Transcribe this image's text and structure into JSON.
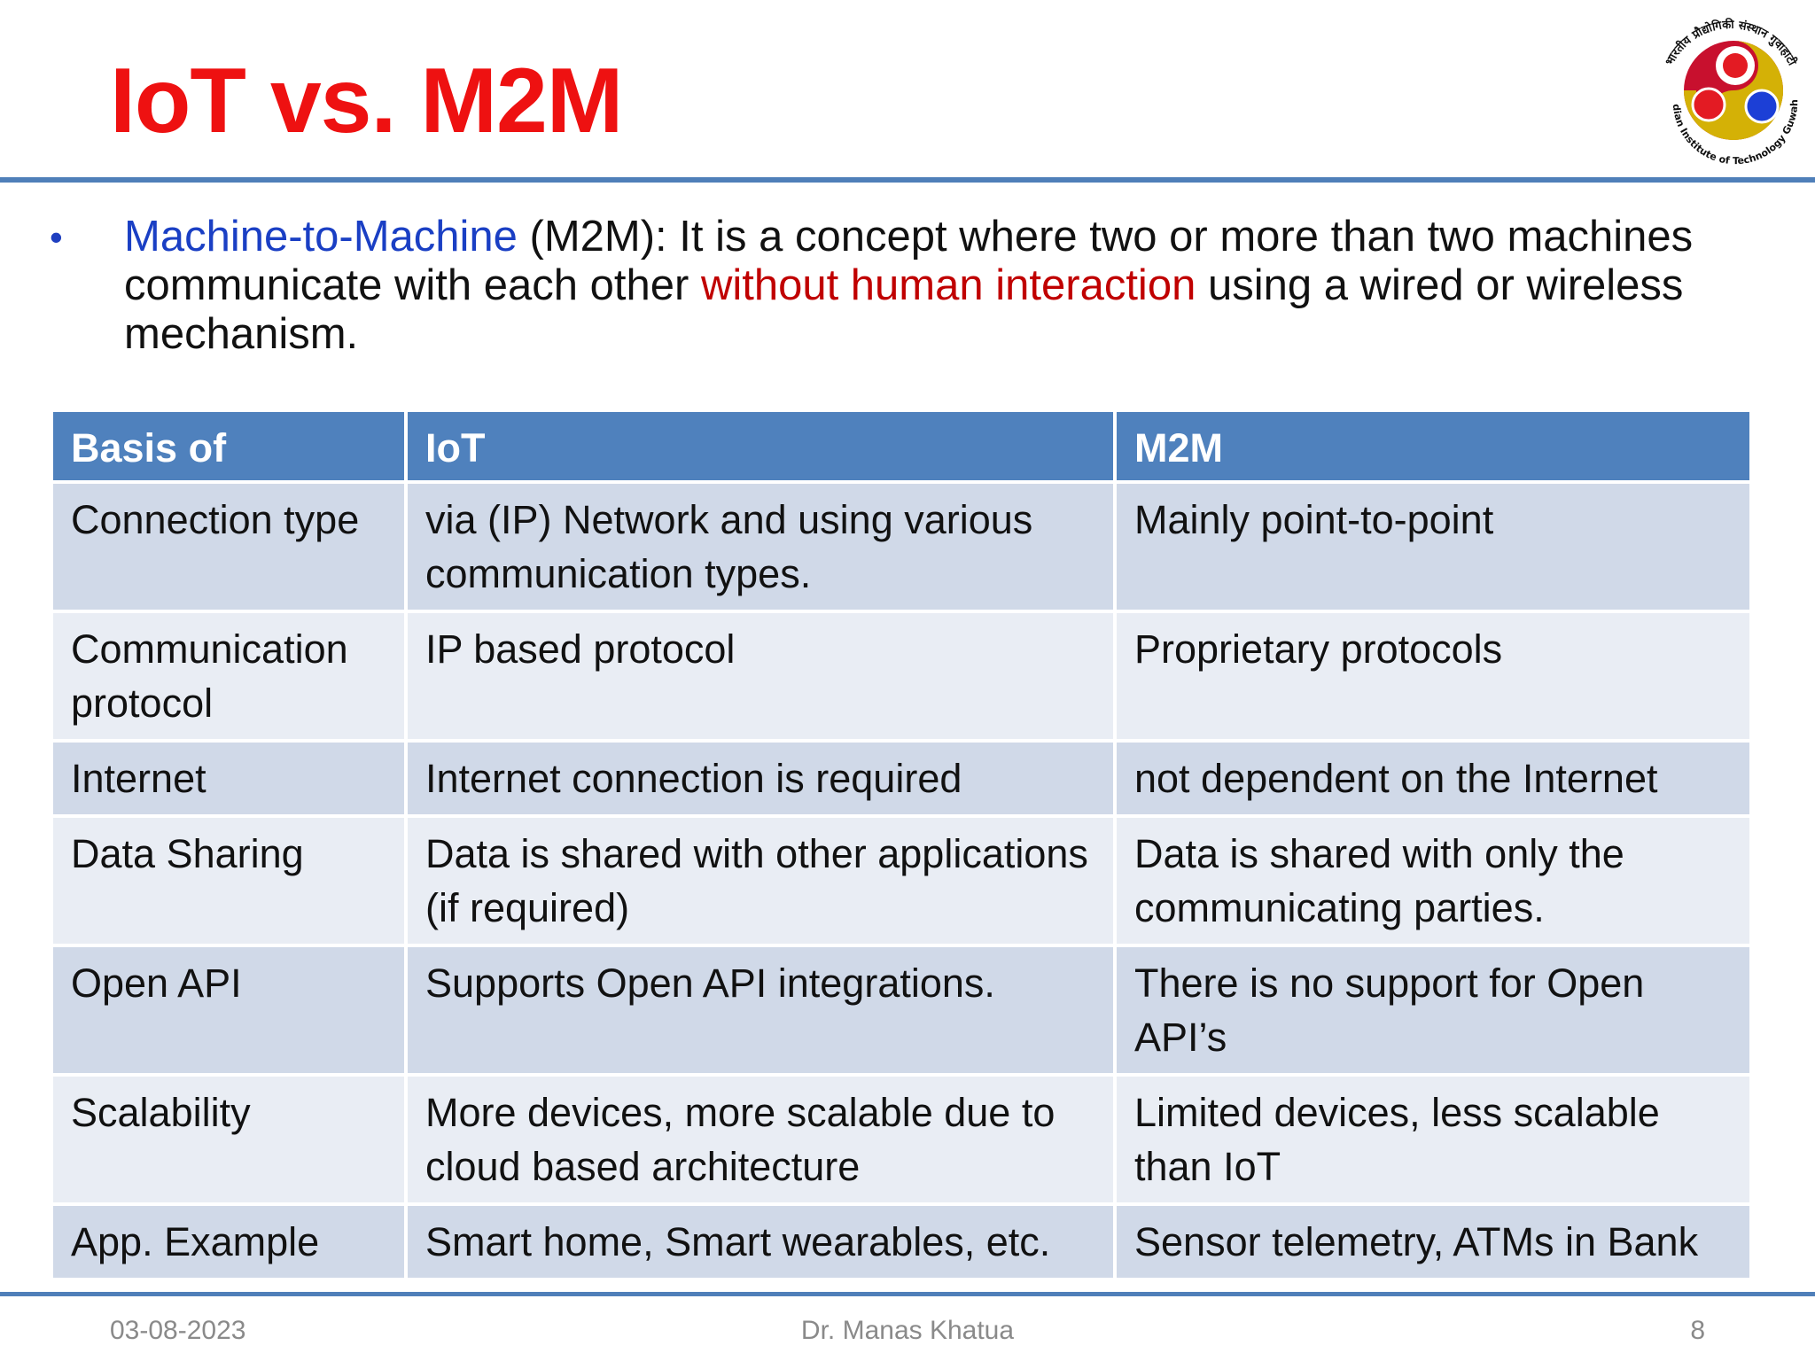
{
  "slide": {
    "title": "IoT vs. M2M",
    "logo": {
      "icon": "iit-guwahati-logo",
      "text_top": "भारतीय प्रौद्योगिकी संस्थान गुवाहाटी",
      "text_bottom": "Indian Institute of Technology Guwahati"
    }
  },
  "bullet": {
    "term": "Machine-to-Machine",
    "text_part1": " (M2M): It is a concept where two or more than two machines communicate with each other ",
    "highlight": "without human interaction",
    "text_part2": " using a wired or wireless mechanism."
  },
  "table": {
    "headers": [
      "Basis of",
      "IoT",
      "M2M"
    ],
    "rows": [
      [
        "Connection type",
        "via (IP) Network and using various communication types.",
        "Mainly point-to-point"
      ],
      [
        "Communication protocol",
        "IP based protocol",
        "Proprietary protocols"
      ],
      [
        "Internet",
        "Internet connection is required",
        "not dependent on the Internet"
      ],
      [
        "Data Sharing",
        "Data is shared with other applications (if required)",
        "Data is shared with only the communicating parties."
      ],
      [
        "Open API",
        "Supports Open API integrations.",
        "There is no support for Open API’s"
      ],
      [
        "Scalability",
        "More devices, more scalable due to cloud based architecture",
        "Limited devices, less scalable than IoT"
      ],
      [
        "App. Example",
        "Smart home, Smart wearables, etc.",
        "Sensor telemetry, ATMs in Bank"
      ]
    ]
  },
  "footer": {
    "date": "03-08-2023",
    "author": "Dr. Manas Khatua",
    "page": "8"
  },
  "colors": {
    "title": "#ee1111",
    "accent_blue": "#1a3fc4",
    "highlight_red": "#c00000",
    "header_fill": "#4f81bd",
    "row_dark": "#d0d9e8",
    "row_light": "#e9edf4",
    "rule": "#4f7fb9"
  }
}
